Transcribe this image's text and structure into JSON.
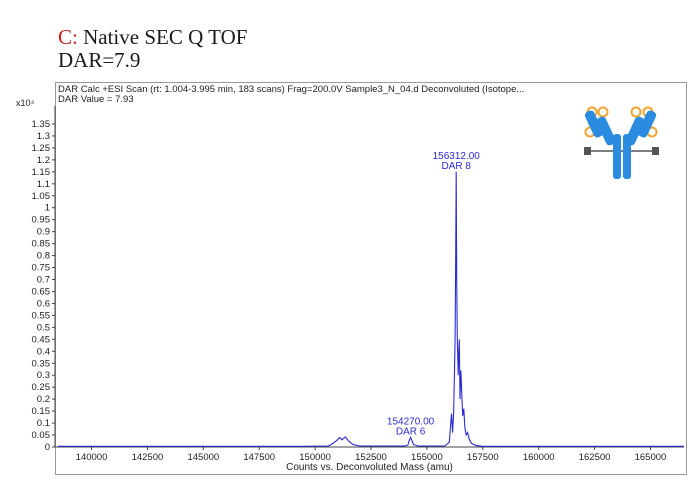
{
  "heading": {
    "letter": "C:",
    "title": " Native SEC Q TOF",
    "dar_line": "DAR=7.9"
  },
  "scan": {
    "title": "DAR Calc +ESI Scan (rt: 1.004-3.995 min, 183 scans) Frag=200.0V Sample3_N_04.d  Deconvoluted (Isotope...",
    "dar_value": "DAR Value = 7.93",
    "y_exponent": "x10⁴"
  },
  "colors": {
    "trace": "#2b2bd6",
    "annotation": "#2b2bd6",
    "frame": "#444444",
    "heading_letter": "#cc1f1f",
    "antibody_blue": "#2b8be0",
    "antibody_gold": "#f0a431"
  },
  "icons": {
    "logo": "antibody-drug-conjugate-icon"
  },
  "chart_data": {
    "type": "line",
    "xlabel": "Counts vs. Deconvoluted Mass (amu)",
    "ylabel": "",
    "xlim": [
      138500,
      166500
    ],
    "ylim": [
      0,
      1.4
    ],
    "x_ticks": [
      140000,
      142500,
      145000,
      147500,
      150000,
      152500,
      155000,
      157500,
      160000,
      162500,
      165000
    ],
    "x_tick_labels": [
      "140000",
      "142500",
      "145000",
      "147500",
      "150000",
      "152500",
      "155000",
      "157500",
      "160000",
      "162500",
      "165000"
    ],
    "y_ticks": [
      0,
      0.05,
      0.1,
      0.15,
      0.2,
      0.25,
      0.3,
      0.35,
      0.4,
      0.45,
      0.5,
      0.55,
      0.6,
      0.65,
      0.7,
      0.75,
      0.8,
      0.85,
      0.9,
      0.95,
      1,
      1.05,
      1.1,
      1.15,
      1.2,
      1.25,
      1.3,
      1.35
    ],
    "y_tick_labels": [
      "0",
      "0.05",
      "0.1",
      "0.15",
      "0.2",
      "0.25",
      "0.3",
      "0.35",
      "0.4",
      "0.45",
      "0.5",
      "0.55",
      "0.6",
      "0.65",
      "0.7",
      "0.75",
      "0.8",
      "0.85",
      "0.9",
      "0.95",
      "1",
      "1.05",
      "1.1",
      "1.15",
      "1.2",
      "1.25",
      "1.3",
      "1.35"
    ],
    "grid": false,
    "series": [
      {
        "x": [
          138500,
          145000,
          149500,
          150600,
          150800,
          151000,
          151100,
          151200,
          151350,
          151500,
          151700,
          152000,
          154000,
          154150,
          154200,
          154270,
          154340,
          154400,
          154600,
          155800,
          156000,
          156100,
          156150,
          156200,
          156230,
          156260,
          156290,
          156312,
          156335,
          156360,
          156400,
          156420,
          156450,
          156480,
          156520,
          156560,
          156600,
          156650,
          156700,
          156760,
          156820,
          156900,
          157000,
          157200,
          157500,
          166500
        ],
        "y": [
          0.003,
          0.003,
          0.003,
          0.004,
          0.015,
          0.03,
          0.04,
          0.03,
          0.042,
          0.025,
          0.01,
          0.004,
          0.004,
          0.008,
          0.025,
          0.04,
          0.025,
          0.01,
          0.004,
          0.004,
          0.02,
          0.14,
          0.06,
          0.15,
          0.3,
          0.45,
          0.8,
          1.15,
          0.7,
          0.45,
          0.3,
          0.38,
          0.45,
          0.2,
          0.32,
          0.22,
          0.13,
          0.16,
          0.08,
          0.05,
          0.06,
          0.03,
          0.015,
          0.006,
          0.003,
          0.003
        ]
      }
    ],
    "annotations": [
      {
        "x": 156312,
        "y": 1.15,
        "mass": "156312.00",
        "label": "DAR 8"
      },
      {
        "x": 154270,
        "y": 0.04,
        "mass": "154270.00",
        "label": "DAR 6"
      }
    ]
  }
}
